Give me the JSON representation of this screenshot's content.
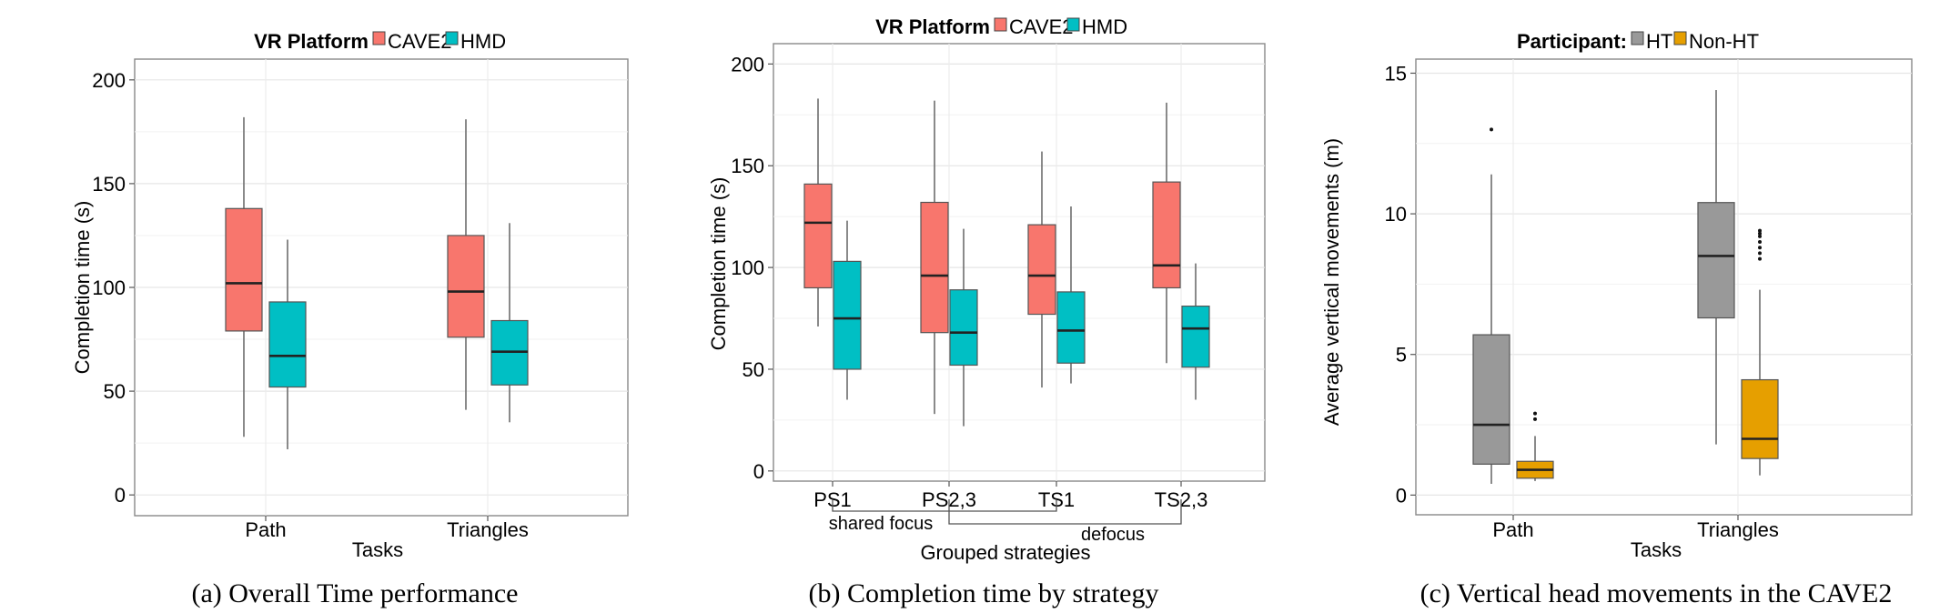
{
  "chart_data": [
    {
      "type": "box",
      "legend_title": "VR Platform",
      "legend_placement": "top",
      "series": [
        {
          "name": "CAVE2",
          "color": "#F8766D"
        },
        {
          "name": "HMD",
          "color": "#00BFC4"
        }
      ],
      "categories": [
        "Path",
        "Triangles"
      ],
      "xlabel": "Tasks",
      "ylabel": "Completion time (s)",
      "ylim": [
        -10,
        210
      ],
      "yticks": [
        0,
        50,
        100,
        150,
        200
      ],
      "grid": true,
      "caption": "(a)  Overall Time performance",
      "boxes": [
        {
          "category": 0,
          "series": 0,
          "min": 28,
          "q1": 79,
          "median": 102,
          "q3": 138,
          "max": 182,
          "outliers": []
        },
        {
          "category": 0,
          "series": 1,
          "min": 22,
          "q1": 52,
          "median": 67,
          "q3": 93,
          "max": 123,
          "outliers": []
        },
        {
          "category": 1,
          "series": 0,
          "min": 41,
          "q1": 76,
          "median": 98,
          "q3": 125,
          "max": 181,
          "outliers": []
        },
        {
          "category": 1,
          "series": 1,
          "min": 35,
          "q1": 53,
          "median": 69,
          "q3": 84,
          "max": 131,
          "outliers": []
        }
      ]
    },
    {
      "type": "box",
      "legend_title": "VR Platform",
      "legend_placement": "top",
      "series": [
        {
          "name": "CAVE2",
          "color": "#F8766D"
        },
        {
          "name": "HMD",
          "color": "#00BFC4"
        }
      ],
      "categories": [
        "PS1",
        "PS2,3",
        "TS1",
        "TS2,3"
      ],
      "xlabel": "Grouped strategies",
      "ylabel": "Completion time (s)",
      "ylim": [
        -5,
        210
      ],
      "yticks": [
        0,
        50,
        100,
        150,
        200
      ],
      "grid": true,
      "groupings": [
        {
          "label": "shared focus",
          "from": 0,
          "to": 2
        },
        {
          "label": "defocus",
          "from": 1,
          "to": 3
        }
      ],
      "caption": "(b)  Completion time by strategy",
      "boxes": [
        {
          "category": 0,
          "series": 0,
          "min": 71,
          "q1": 90,
          "median": 122,
          "q3": 141,
          "max": 183,
          "outliers": []
        },
        {
          "category": 0,
          "series": 1,
          "min": 35,
          "q1": 50,
          "median": 75,
          "q3": 103,
          "max": 123,
          "outliers": []
        },
        {
          "category": 1,
          "series": 0,
          "min": 28,
          "q1": 68,
          "median": 96,
          "q3": 132,
          "max": 182,
          "outliers": []
        },
        {
          "category": 1,
          "series": 1,
          "min": 22,
          "q1": 52,
          "median": 68,
          "q3": 89,
          "max": 119,
          "outliers": []
        },
        {
          "category": 2,
          "series": 0,
          "min": 41,
          "q1": 77,
          "median": 96,
          "q3": 121,
          "max": 157,
          "outliers": []
        },
        {
          "category": 2,
          "series": 1,
          "min": 43,
          "q1": 53,
          "median": 69,
          "q3": 88,
          "max": 130,
          "outliers": []
        },
        {
          "category": 3,
          "series": 0,
          "min": 53,
          "q1": 90,
          "median": 101,
          "q3": 142,
          "max": 181,
          "outliers": []
        },
        {
          "category": 3,
          "series": 1,
          "min": 35,
          "q1": 51,
          "median": 70,
          "q3": 81,
          "max": 102,
          "outliers": []
        }
      ]
    },
    {
      "type": "box",
      "legend_title": "Participant:",
      "legend_placement": "top",
      "series": [
        {
          "name": "HT",
          "color": "#999999"
        },
        {
          "name": "Non-HT",
          "color": "#E69F00"
        }
      ],
      "categories": [
        "Path",
        "Triangles"
      ],
      "xlabel": "Tasks",
      "ylabel": "Average vertical movements (m)",
      "ylim": [
        -0.7,
        15.5
      ],
      "yticks": [
        0,
        5,
        10,
        15
      ],
      "grid": true,
      "caption": "(c)  Vertical head movements in the CAVE2",
      "boxes": [
        {
          "category": 0,
          "series": 0,
          "min": 0.4,
          "q1": 1.1,
          "median": 2.5,
          "q3": 5.7,
          "max": 11.4,
          "outliers": [
            13.0
          ]
        },
        {
          "category": 0,
          "series": 1,
          "min": 0.5,
          "q1": 0.6,
          "median": 0.9,
          "q3": 1.2,
          "max": 2.1,
          "outliers": [
            2.7,
            2.9
          ]
        },
        {
          "category": 1,
          "series": 0,
          "min": 1.8,
          "q1": 6.3,
          "median": 8.5,
          "q3": 10.4,
          "max": 14.4,
          "outliers": []
        },
        {
          "category": 1,
          "series": 1,
          "min": 0.7,
          "q1": 1.3,
          "median": 2.0,
          "q3": 4.1,
          "max": 7.3,
          "outliers": [
            8.4,
            8.6,
            8.8,
            9.0,
            9.2,
            9.3,
            9.4
          ]
        }
      ]
    }
  ]
}
